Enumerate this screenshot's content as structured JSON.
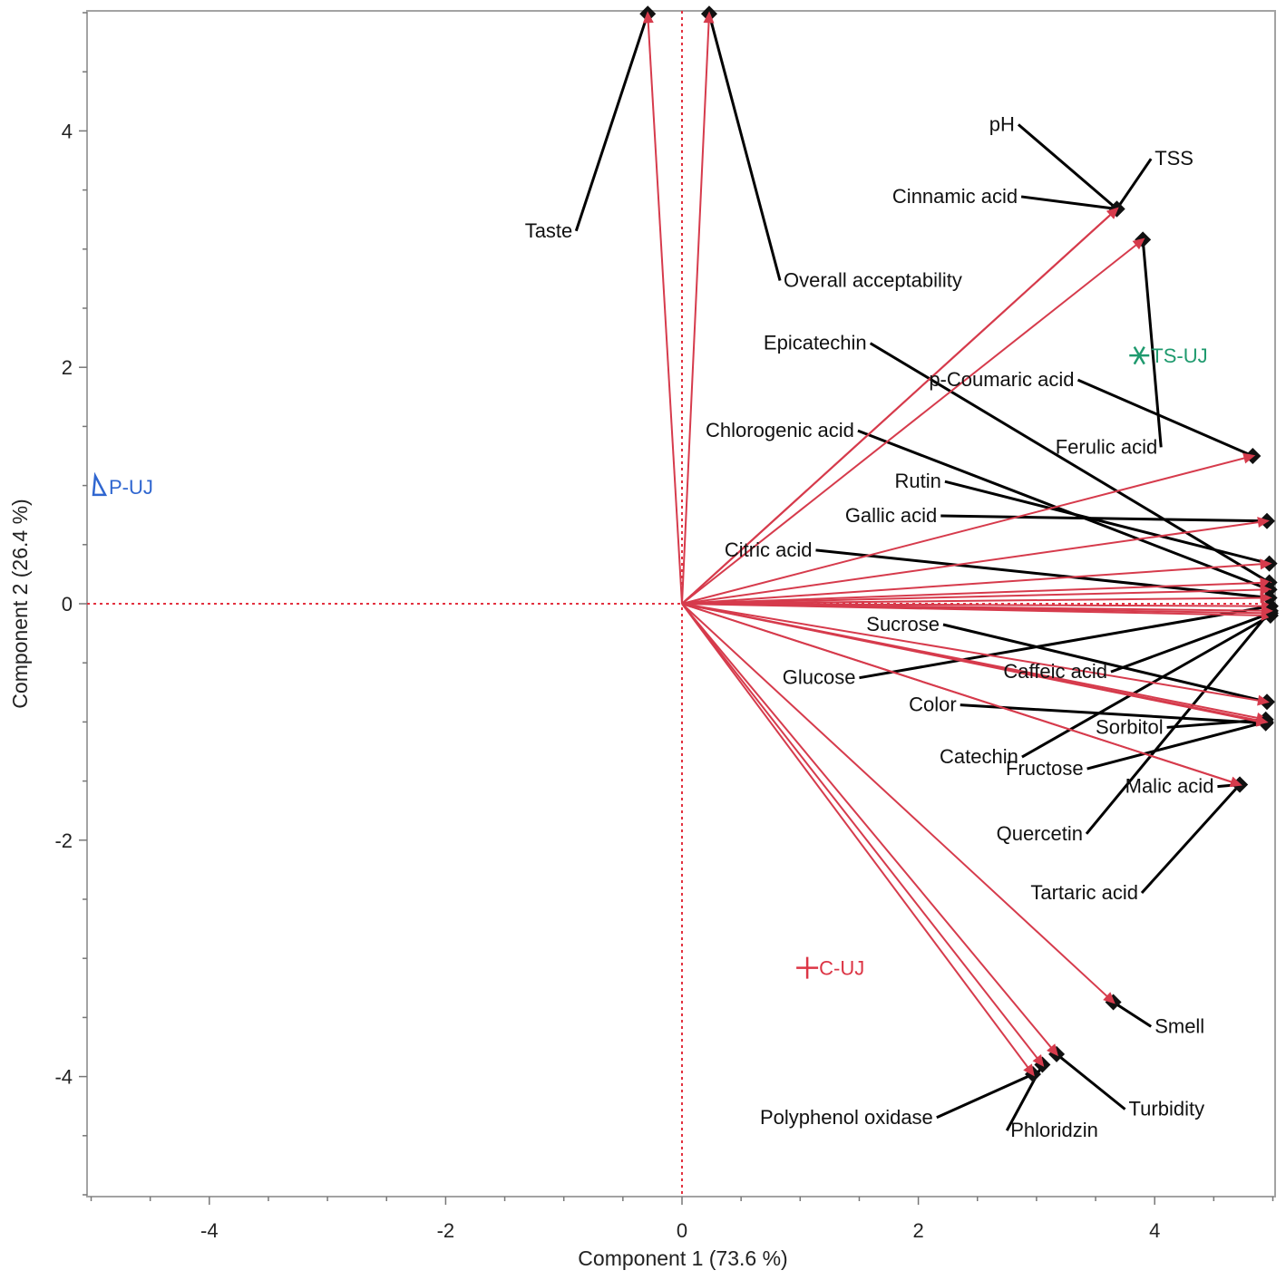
{
  "chart_data": {
    "type": "scatter",
    "subtype": "biplot",
    "title": "",
    "xlabel": "Component 1  (73.6 %)",
    "ylabel": "Component 2  (26.4 %)",
    "xlim": [
      -5,
      5
    ],
    "ylim": [
      -5,
      5
    ],
    "xticks": [
      -4,
      -2,
      0,
      2,
      4
    ],
    "yticks": [
      -4,
      -2,
      0,
      2,
      4
    ],
    "xtick_labels": [
      "-4",
      "-2",
      "0",
      "2",
      "4"
    ],
    "ytick_labels": [
      "-4",
      "-2",
      "0",
      "2",
      "4"
    ],
    "grid": false,
    "reference_lines": {
      "x": 0,
      "y": 0,
      "style": "dotted",
      "color": "#e3313f"
    },
    "colors": {
      "loading": "#d63b4c",
      "leader": "#000000",
      "marker": "#111111",
      "axis": "#9a9a9a"
    },
    "loadings": [
      {
        "name": "Taste",
        "x": -0.29,
        "y": 4.99,
        "label_x": -1.33,
        "label_y": 3.1
      },
      {
        "name": "Overall acceptability",
        "x": 0.23,
        "y": 4.99,
        "label_x": 0.86,
        "label_y": 2.68
      },
      {
        "name": "pH",
        "x": 3.68,
        "y": 3.34,
        "label_x": 2.6,
        "label_y": 4.0
      },
      {
        "name": "TSS",
        "x": 3.68,
        "y": 3.34,
        "label_x": 4.0,
        "label_y": 3.71
      },
      {
        "name": "Cinnamic acid",
        "x": 3.68,
        "y": 3.34,
        "label_x": 1.78,
        "label_y": 3.39
      },
      {
        "name": "Ferulic acid",
        "x": 3.9,
        "y": 3.08,
        "label_x": 3.16,
        "label_y": 1.27
      },
      {
        "name": "p-Coumaric acid",
        "x": 4.83,
        "y": 1.25,
        "label_x": 2.09,
        "label_y": 1.84
      },
      {
        "name": "Epicatechin",
        "x": 4.97,
        "y": 0.18,
        "label_x": 0.69,
        "label_y": 2.15
      },
      {
        "name": "Chlorogenic acid",
        "x": 4.97,
        "y": 0.12,
        "label_x": 0.2,
        "label_y": 1.41
      },
      {
        "name": "Rutin",
        "x": 4.97,
        "y": 0.34,
        "label_x": 1.8,
        "label_y": 0.98
      },
      {
        "name": "Gallic acid",
        "x": 4.95,
        "y": 0.7,
        "label_x": 1.38,
        "label_y": 0.69
      },
      {
        "name": "Citric acid",
        "x": 4.97,
        "y": 0.05,
        "label_x": 0.36,
        "label_y": 0.4
      },
      {
        "name": "Sucrose",
        "x": 4.95,
        "y": -0.83,
        "label_x": 1.56,
        "label_y": -0.23
      },
      {
        "name": "Glucose",
        "x": 4.98,
        "y": -0.02,
        "label_x": 0.85,
        "label_y": -0.68
      },
      {
        "name": "Caffeic acid",
        "x": 4.98,
        "y": -0.08,
        "label_x": 2.72,
        "label_y": -0.63
      },
      {
        "name": "Color",
        "x": 4.94,
        "y": -1.01,
        "label_x": 1.92,
        "label_y": -0.91
      },
      {
        "name": "Sorbitol",
        "x": 4.94,
        "y": -0.98,
        "label_x": 3.5,
        "label_y": -1.1
      },
      {
        "name": "Catechin",
        "x": 4.98,
        "y": -0.1,
        "label_x": 2.18,
        "label_y": -1.35
      },
      {
        "name": "Fructose",
        "x": 4.94,
        "y": -1.0,
        "label_x": 2.74,
        "label_y": -1.45
      },
      {
        "name": "Malic acid",
        "x": 4.72,
        "y": -1.53,
        "label_x": 3.75,
        "label_y": -1.6
      },
      {
        "name": "Quercetin",
        "x": 4.98,
        "y": -0.06,
        "label_x": 2.66,
        "label_y": -2.0
      },
      {
        "name": "Tartaric acid",
        "x": 4.72,
        "y": -1.53,
        "label_x": 2.95,
        "label_y": -2.5
      },
      {
        "name": "Smell",
        "x": 3.65,
        "y": -3.37,
        "label_x": 4.0,
        "label_y": -3.63
      },
      {
        "name": "Polyphenol oxidase",
        "x": 2.97,
        "y": -3.98,
        "label_x": 0.66,
        "label_y": -4.4
      },
      {
        "name": "Phloridzin",
        "x": 3.05,
        "y": -3.9,
        "label_x": 2.78,
        "label_y": -4.51
      },
      {
        "name": "Turbidity",
        "x": 3.17,
        "y": -3.81,
        "label_x": 3.78,
        "label_y": -4.33
      }
    ],
    "observations": [
      {
        "name": "TS-UJ",
        "x": 3.87,
        "y": 2.1,
        "marker": "asterisk",
        "color": "#1f9a6e"
      },
      {
        "name": "P-UJ",
        "x": -4.95,
        "y": 0.99,
        "marker": "triangle",
        "color": "#2f66d0"
      },
      {
        "name": "C-UJ",
        "x": 1.06,
        "y": -3.08,
        "marker": "plus",
        "color": "#dc3545"
      }
    ]
  }
}
